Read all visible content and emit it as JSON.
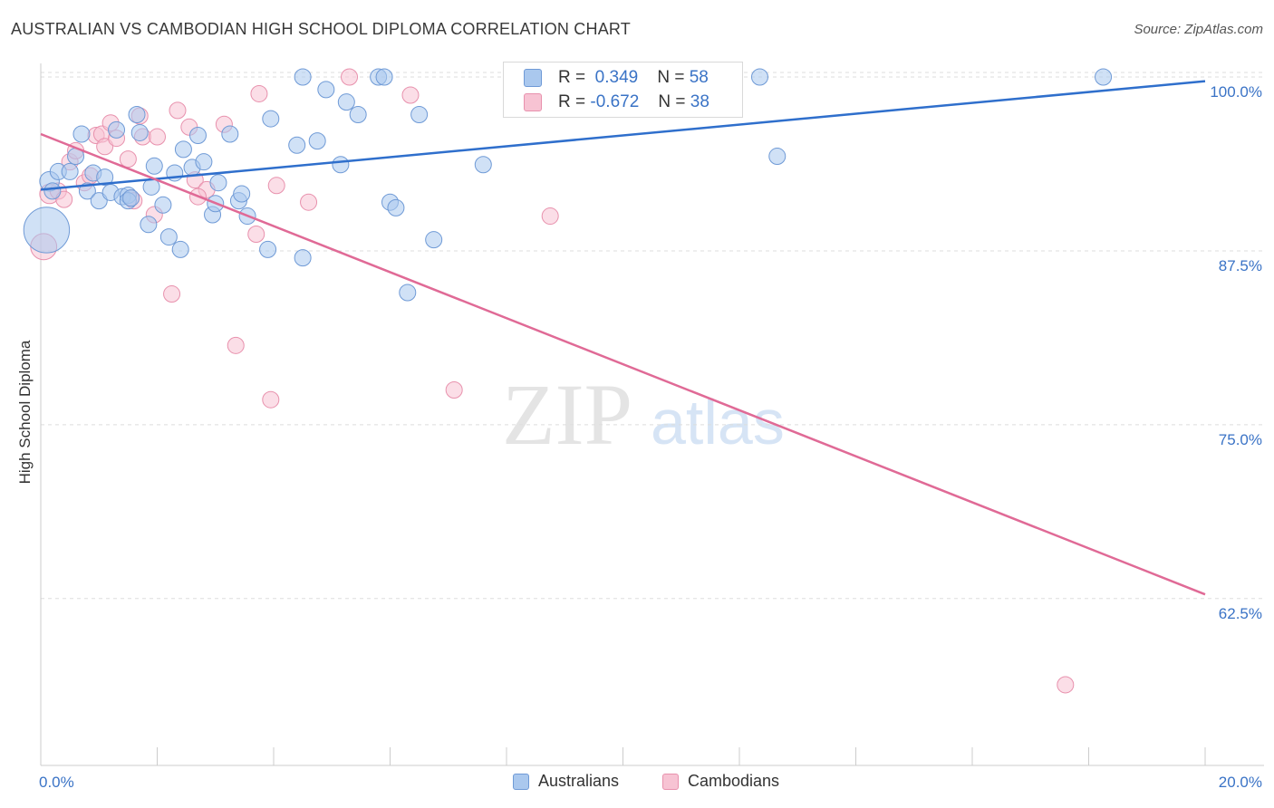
{
  "title": "AUSTRALIAN VS CAMBODIAN HIGH SCHOOL DIPLOMA CORRELATION CHART",
  "source": "Source: ZipAtlas.com",
  "watermark": {
    "zip": "ZIP",
    "atlas": "atlas"
  },
  "colors": {
    "australians_fill": "#aac8ee",
    "australians_stroke": "#6f9ad6",
    "australians_line": "#2f6fcc",
    "cambodians_fill": "#f7c3d3",
    "cambodians_stroke": "#e891ad",
    "cambodians_line": "#e06a96",
    "axis_text": "#3a73c6",
    "grid": "#dddddd"
  },
  "legend_box": {
    "rows": [
      {
        "r_label": "R =",
        "r_value": "0.349",
        "n_label": "N =",
        "n_value": "58"
      },
      {
        "r_label": "R =",
        "r_value": "-0.672",
        "n_label": "N =",
        "n_value": "38"
      }
    ]
  },
  "legend_bottom": {
    "australians": "Australians",
    "cambodians": "Cambodians"
  },
  "chart_data": {
    "type": "scatter",
    "title": "AUSTRALIAN VS CAMBODIAN HIGH SCHOOL DIPLOMA CORRELATION CHART",
    "xlabel": "",
    "ylabel": "High School Diploma",
    "xlim": [
      0,
      20
    ],
    "ylim": [
      50.5,
      101.5
    ],
    "x_tick_labels": [
      "0.0%",
      "20.0%"
    ],
    "y_ticks": [
      62.5,
      75.0,
      87.5,
      100.0
    ],
    "y_tick_labels": [
      "62.5%",
      "75.0%",
      "87.5%",
      "100.0%"
    ],
    "grid": true,
    "legend_position": "bottom",
    "series": [
      {
        "name": "Australians",
        "r": 0.349,
        "n": 58,
        "trend": {
          "x": [
            0,
            20
          ],
          "y": [
            91.9,
            99.7
          ]
        },
        "points": [
          [
            0.1,
            89.0,
            28
          ],
          [
            0.15,
            92.5,
            12
          ],
          [
            0.2,
            91.8,
            10
          ],
          [
            0.3,
            93.2,
            10
          ],
          [
            0.5,
            93.2,
            10
          ],
          [
            0.6,
            94.3,
            10
          ],
          [
            0.7,
            95.9,
            10
          ],
          [
            0.8,
            91.8,
            10
          ],
          [
            0.9,
            93.1,
            10
          ],
          [
            1.0,
            91.1,
            10
          ],
          [
            1.1,
            92.8,
            10
          ],
          [
            1.2,
            91.7,
            10
          ],
          [
            1.3,
            96.2,
            10
          ],
          [
            1.4,
            91.4,
            10
          ],
          [
            1.5,
            91.5,
            10
          ],
          [
            1.5,
            91.1,
            10
          ],
          [
            1.65,
            97.3,
            10
          ],
          [
            1.7,
            96.0,
            10
          ],
          [
            1.85,
            89.4,
            10
          ],
          [
            1.9,
            92.1,
            10
          ],
          [
            1.95,
            93.6,
            10
          ],
          [
            2.1,
            90.8,
            10
          ],
          [
            2.2,
            88.5,
            10
          ],
          [
            2.3,
            93.1,
            10
          ],
          [
            2.4,
            87.6,
            10
          ],
          [
            2.45,
            94.8,
            10
          ],
          [
            2.6,
            93.5,
            10
          ],
          [
            2.7,
            95.8,
            10
          ],
          [
            2.8,
            93.9,
            10
          ],
          [
            2.95,
            90.1,
            10
          ],
          [
            3.0,
            90.9,
            10
          ],
          [
            3.05,
            92.4,
            10
          ],
          [
            3.25,
            95.9,
            10
          ],
          [
            3.4,
            91.1,
            10
          ],
          [
            3.45,
            91.6,
            10
          ],
          [
            3.55,
            90.0,
            10
          ],
          [
            3.9,
            87.6,
            10
          ],
          [
            3.95,
            97.0,
            10
          ],
          [
            4.4,
            95.1,
            10
          ],
          [
            4.5,
            87.0,
            10
          ],
          [
            4.5,
            100.0,
            10
          ],
          [
            4.75,
            95.4,
            10
          ],
          [
            4.9,
            99.1,
            10
          ],
          [
            5.15,
            93.7,
            10
          ],
          [
            5.25,
            98.2,
            10
          ],
          [
            5.45,
            97.3,
            10
          ],
          [
            5.8,
            100.0,
            10
          ],
          [
            5.9,
            100.0,
            10
          ],
          [
            6.0,
            91.0,
            10
          ],
          [
            6.1,
            90.6,
            10
          ],
          [
            6.3,
            84.5,
            10
          ],
          [
            6.5,
            97.3,
            10
          ],
          [
            6.75,
            88.3,
            10
          ],
          [
            7.6,
            93.7,
            10
          ],
          [
            12.35,
            100.0,
            10
          ],
          [
            12.65,
            94.3,
            10
          ],
          [
            18.25,
            100.0,
            10
          ],
          [
            1.55,
            91.3,
            10
          ]
        ]
      },
      {
        "name": "Cambodians",
        "r": -0.672,
        "n": 38,
        "trend": {
          "x": [
            0,
            20
          ],
          "y": [
            95.9,
            62.8
          ]
        },
        "points": [
          [
            0.05,
            87.8,
            16
          ],
          [
            0.15,
            91.6,
            12
          ],
          [
            0.3,
            91.8,
            10
          ],
          [
            0.4,
            91.2,
            10
          ],
          [
            0.5,
            93.9,
            10
          ],
          [
            0.6,
            94.7,
            10
          ],
          [
            0.75,
            92.4,
            10
          ],
          [
            0.85,
            92.9,
            10
          ],
          [
            0.95,
            95.8,
            10
          ],
          [
            1.05,
            95.9,
            10
          ],
          [
            1.1,
            95.0,
            10
          ],
          [
            1.2,
            96.7,
            10
          ],
          [
            1.3,
            95.6,
            10
          ],
          [
            1.5,
            94.1,
            10
          ],
          [
            1.55,
            91.3,
            10
          ],
          [
            1.6,
            91.1,
            10
          ],
          [
            1.7,
            97.2,
            10
          ],
          [
            1.75,
            95.7,
            10
          ],
          [
            1.95,
            90.1,
            10
          ],
          [
            2.0,
            95.7,
            10
          ],
          [
            2.25,
            84.4,
            10
          ],
          [
            2.35,
            97.6,
            10
          ],
          [
            2.55,
            96.4,
            10
          ],
          [
            2.65,
            92.6,
            10
          ],
          [
            2.85,
            91.9,
            10
          ],
          [
            3.15,
            96.6,
            10
          ],
          [
            3.35,
            80.7,
            10
          ],
          [
            3.7,
            88.7,
            10
          ],
          [
            3.75,
            98.8,
            10
          ],
          [
            3.95,
            76.8,
            10
          ],
          [
            4.05,
            92.2,
            10
          ],
          [
            4.6,
            91.0,
            10
          ],
          [
            5.3,
            100.0,
            10
          ],
          [
            6.35,
            98.7,
            10
          ],
          [
            7.1,
            77.5,
            10
          ],
          [
            8.75,
            90.0,
            10
          ],
          [
            17.6,
            56.3,
            10
          ],
          [
            2.7,
            91.4,
            10
          ]
        ]
      }
    ]
  }
}
